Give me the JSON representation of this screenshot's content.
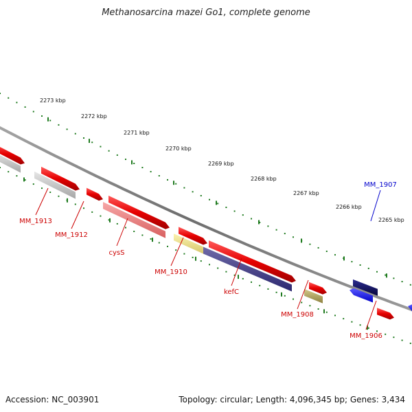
{
  "title": "Methanosarcina mazei Go1, complete genome",
  "footer": {
    "accession": "Accession: NC_003901",
    "summary": "Topology: circular; Length: 4,096,345 bp; Genes: 3,434"
  },
  "scale_labels": [
    "2273 kbp",
    "2272 kbp",
    "2271 kbp",
    "2270 kbp",
    "2269 kbp",
    "2268 kbp",
    "2267 kbp",
    "2266 kbp",
    "2265 kbp"
  ],
  "gene_labels": [
    "MM_1913",
    "MM_1912",
    "cysS",
    "MM_1910",
    "kefC",
    "MM_1908",
    "MM_1907",
    "MM_1906"
  ],
  "colors": {
    "forward_gene": "#1a1ae6",
    "reverse_gene": "#e60000",
    "backbone": "#7a7a7a",
    "scale": "#1e7a1e",
    "reverse_label": "#cc0000",
    "forward_label": "#0000cc"
  }
}
